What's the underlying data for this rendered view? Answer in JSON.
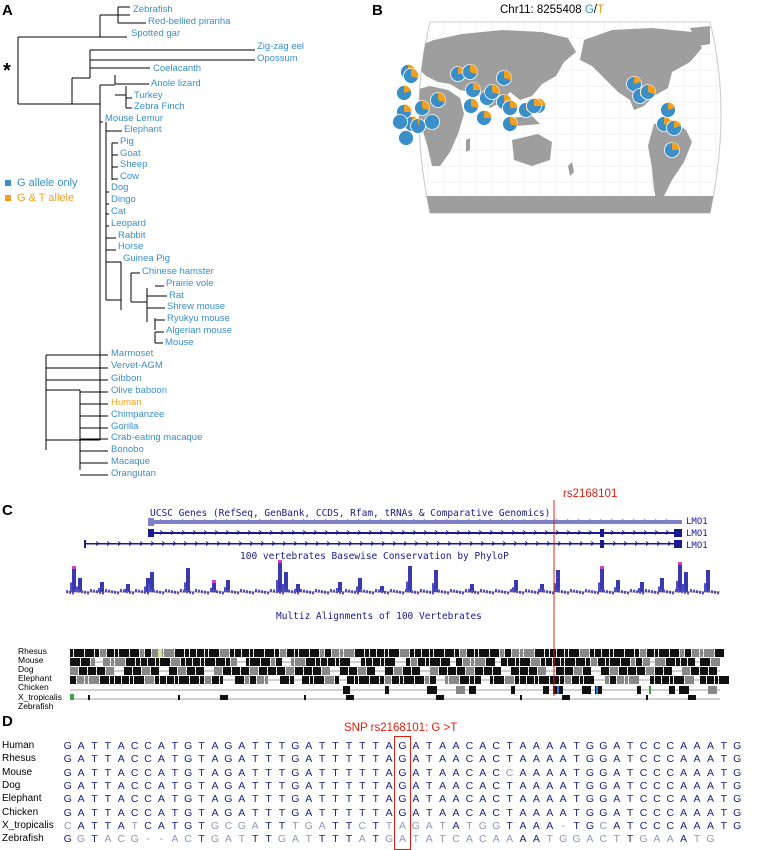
{
  "panels": {
    "a": "A",
    "b": "B",
    "c": "C",
    "d": "D"
  },
  "tree": {
    "star": "*",
    "species": [
      "Zebrafish",
      "Red-bellied piranha",
      "Spotted gar",
      "Zig-zag eel",
      "Opossum",
      "Coelacanth",
      "Anole lizard",
      "Turkey",
      "Zebra Finch",
      "Mouse Lemur",
      "Elephant",
      "Pig",
      "Goat",
      "Sheep",
      "Cow",
      "Dog",
      "Dingo",
      "Cat",
      "Leopard",
      "Rabbit",
      "Horse",
      "Guinea Pig",
      "Chinese hamster",
      "Prairie vole",
      "Rat",
      "Shrew mouse",
      "Ryukyu mouse",
      "Algerian mouse",
      "Mouse",
      "Marmoset",
      "Vervet-AGM",
      "Gibbon",
      "Olive baboon",
      "Human",
      "Chimpanzee",
      "Gorilla",
      "Crab-eating macaque",
      "Bonobo",
      "Macaque",
      "Orangutan"
    ],
    "highlighted": "Human"
  },
  "legend": {
    "g_only": "G allele only",
    "g_t": "G & T allele",
    "color_g": "#3a8fc8",
    "color_t": "#f0a020"
  },
  "map": {
    "title_prefix": "Chr11: 8255408",
    "allele_g": "G",
    "sep": "/",
    "allele_t": "T",
    "land_color": "#9e9e9e",
    "ocean_color": "#ffffff",
    "pies": [
      {
        "t": 0.25
      },
      {
        "t": 0.3
      },
      {
        "t": 0.2
      },
      {
        "t": 0.25
      },
      {
        "t": 0.35
      },
      {
        "t": 0.3
      },
      {
        "t": 0.0
      },
      {
        "t": 0.0
      },
      {
        "t": 0.0
      },
      {
        "t": 0.05
      },
      {
        "t": 0.3
      },
      {
        "t": 0.25
      },
      {
        "t": 0.3
      },
      {
        "t": 0.25
      },
      {
        "t": 0.3
      },
      {
        "t": 0.3
      },
      {
        "t": 0.25
      },
      {
        "t": 0.3
      },
      {
        "t": 0.35
      },
      {
        "t": 0.25
      },
      {
        "t": 0.25
      },
      {
        "t": 0.3
      },
      {
        "t": 0.3
      },
      {
        "t": 0.35
      },
      {
        "t": 0.25
      },
      {
        "t": 0.2
      },
      {
        "t": 0.25
      },
      {
        "t": 0.3
      },
      {
        "t": 0.3
      },
      {
        "t": 0.2
      },
      {
        "t": 0.25
      },
      {
        "t": 0.2
      }
    ]
  },
  "browser": {
    "snp_label": "rs2168101",
    "genes_title": "UCSC Genes (RefSeq, GenBank, CCDS, Rfam, tRNAs & Comparative Genomics)",
    "gene_name": "LMO1",
    "phylop_title": "100 vertebrates Basewise Conservation by PhyloP",
    "multiz_title": "Multiz Alignments of 100 Vertebrates",
    "species": [
      "Rhesus",
      "Mouse",
      "Dog",
      "Elephant",
      "Chicken",
      "X_tropicalis",
      "Zebrafish"
    ]
  },
  "alignment": {
    "title": "SNP rs2168101: G >T",
    "rows": [
      {
        "name": "Human",
        "seq": "GATTACCATGTAGATTTGATTTTTAGATAACACTAAAATGGATCCCAAATG"
      },
      {
        "name": "Rhesus",
        "seq": "GATTACCATGTAGATTTGATTTTTAGATAACACTAAAATGGATCCCAAATG"
      },
      {
        "name": "Mouse",
        "seq": "GATTACCATGTAGATTTGATTTTTAGATAACACCAAAATGGATCCCAAATG"
      },
      {
        "name": "Dog",
        "seq": "GATTACCATGTAGATTTGATTTTTAGATAACACTAAAATGGATCCCAAATG"
      },
      {
        "name": "Elephant",
        "seq": "GATTACCATGTAGATTTGATTTTTAGATAACACTAAAATGGATCCCAAATG"
      },
      {
        "name": "Chicken",
        "seq": "GATTACCATGTAGATTTGATTTTTAGATAACACTAAAATGGATCCCAAATG"
      },
      {
        "name": "X_tropicalis",
        "seq": "CATTATCATGTGCGATTTGATTCTTAGATATGGTAAA-TGCATCCCAAATG"
      },
      {
        "name": "Zebrafish",
        "seq": "GGTACG--ACTGATTTGATTTTATGATATCACAAAATGGACTTGAAATG"
      }
    ]
  }
}
